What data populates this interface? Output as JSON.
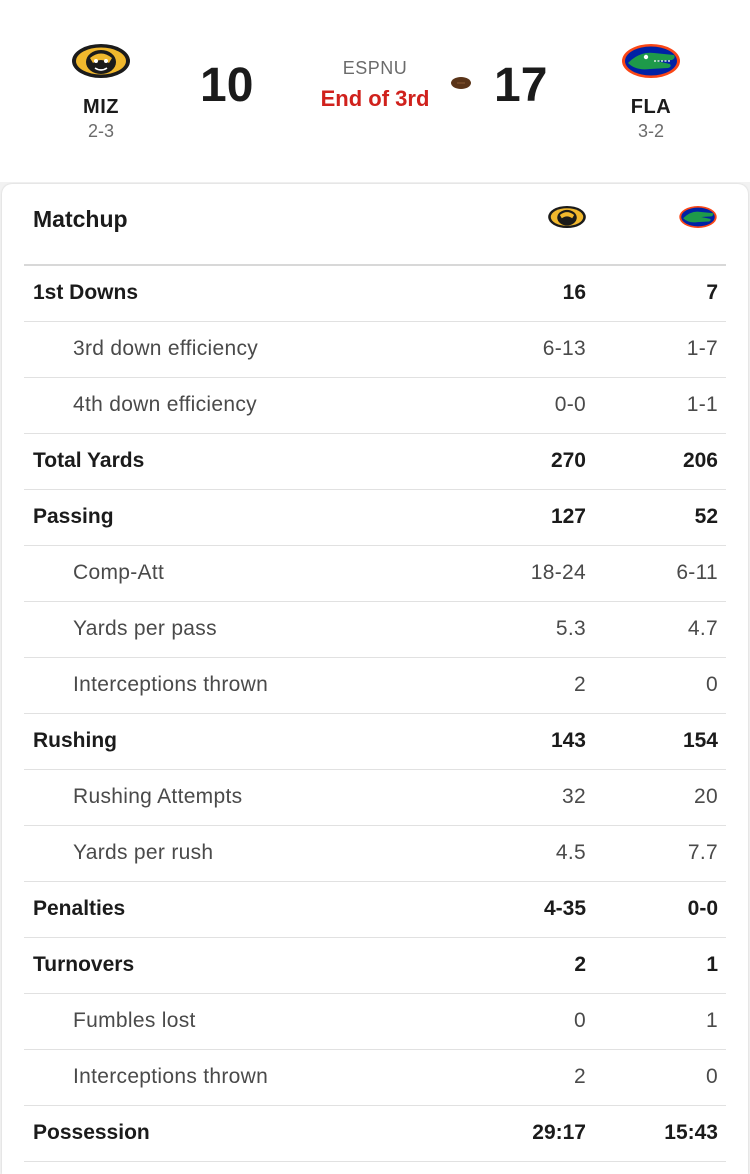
{
  "game": {
    "away": {
      "abbr": "MIZ",
      "record": "2-3",
      "score": "10",
      "logo": "missouri-tiger-icon"
    },
    "home": {
      "abbr": "FLA",
      "record": "3-2",
      "score": "17",
      "logo": "florida-gator-icon"
    },
    "network": "ESPNU",
    "status": "End of 3rd",
    "possession_icon": "football-icon",
    "colors": {
      "status": "#d0211c",
      "miz_gold": "#f1b82d",
      "fla_blue": "#0021a5",
      "fla_orange": "#fa4616"
    }
  },
  "matchup": {
    "title": "Matchup",
    "rows": [
      {
        "label": "1st Downs",
        "away": "16",
        "home": "7",
        "style": "main"
      },
      {
        "label": "3rd down efficiency",
        "away": "6-13",
        "home": "1-7",
        "style": "sub"
      },
      {
        "label": "4th down efficiency",
        "away": "0-0",
        "home": "1-1",
        "style": "sub"
      },
      {
        "label": "Total Yards",
        "away": "270",
        "home": "206",
        "style": "main"
      },
      {
        "label": "Passing",
        "away": "127",
        "home": "52",
        "style": "main"
      },
      {
        "label": "Comp-Att",
        "away": "18-24",
        "home": "6-11",
        "style": "sub"
      },
      {
        "label": "Yards per pass",
        "away": "5.3",
        "home": "4.7",
        "style": "sub"
      },
      {
        "label": "Interceptions thrown",
        "away": "2",
        "home": "0",
        "style": "sub"
      },
      {
        "label": "Rushing",
        "away": "143",
        "home": "154",
        "style": "main"
      },
      {
        "label": "Rushing Attempts",
        "away": "32",
        "home": "20",
        "style": "sub"
      },
      {
        "label": "Yards per rush",
        "away": "4.5",
        "home": "7.7",
        "style": "sub"
      },
      {
        "label": "Penalties",
        "away": "4-35",
        "home": "0-0",
        "style": "main"
      },
      {
        "label": "Turnovers",
        "away": "2",
        "home": "1",
        "style": "main"
      },
      {
        "label": "Fumbles lost",
        "away": "0",
        "home": "1",
        "style": "sub"
      },
      {
        "label": "Interceptions thrown",
        "away": "2",
        "home": "0",
        "style": "sub"
      },
      {
        "label": "Possession",
        "away": "29:17",
        "home": "15:43",
        "style": "main"
      }
    ]
  }
}
